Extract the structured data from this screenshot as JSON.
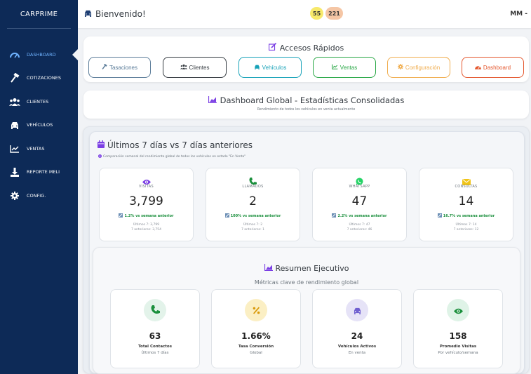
{
  "sidebar": {
    "brand": "CARPRIME",
    "items": [
      {
        "label": "DASHBOARD",
        "icon": "dashboard-icon",
        "active": true
      },
      {
        "label": "COTIZACIONES",
        "icon": "hammer-icon"
      },
      {
        "label": "CLIENTES",
        "icon": "users-icon"
      },
      {
        "label": "VEHÍCULOS",
        "icon": "car-icon"
      },
      {
        "label": "VENTAS",
        "icon": "chart-line-icon"
      },
      {
        "label": "REPORTE MELI",
        "icon": "download-icon"
      },
      {
        "label": "CONFIG.",
        "icon": "gear-icon"
      }
    ]
  },
  "topbar": {
    "welcome": "Bienvenido!",
    "badge_yellow": "55",
    "badge_orange": "221",
    "user": "MM -"
  },
  "quick": {
    "title": "Accesos Rápidos",
    "buttons": [
      {
        "label": "Tasaciones",
        "color": "#5b7c99",
        "icon": "hammer-icon"
      },
      {
        "label": "Clientes",
        "color": "#343a40",
        "icon": "users-icon"
      },
      {
        "label": "Vehículos",
        "color": "#17a2b8",
        "icon": "car-icon"
      },
      {
        "label": "Ventas",
        "color": "#28a745",
        "icon": "chart-line-icon"
      },
      {
        "label": "Configuración",
        "color": "#f0ad4e",
        "icon": "gear-icon"
      },
      {
        "label": "Dashboard",
        "color": "#e4572e",
        "icon": "gauge-icon"
      }
    ]
  },
  "global": {
    "title": "Dashboard Global - Estadísticas Consolidadas",
    "subtitle": "Rendimiento de todos los vehículos en venta actualmente"
  },
  "week": {
    "title": "Últimos 7 días vs 7 días anteriores",
    "note": "Comparación semanal del rendimiento global de todos los vehículos en estado \"En Venta\"",
    "stats": [
      {
        "label": "VISITAS",
        "value": "3,799",
        "trend": "1.2% vs semana anterior",
        "last": "Últimos 7: 3,799",
        "prev": "7 anteriores: 3,754",
        "icon": "eye-icon",
        "color": "#7b3fe4"
      },
      {
        "label": "LLAMADOS",
        "value": "2",
        "trend": "100% vs semana anterior",
        "last": "Últimos 7: 2",
        "prev": "7 anteriores: 1",
        "icon": "phone-icon",
        "color": "#1a8f3c"
      },
      {
        "label": "WHATSAPP",
        "value": "47",
        "trend": "2.2% vs semana anterior",
        "last": "Últimos 7: 47",
        "prev": "7 anteriores: 46",
        "icon": "whatsapp-icon",
        "color": "#25d366"
      },
      {
        "label": "CONSULTAS",
        "value": "14",
        "trend": "16.7% vs semana anterior",
        "last": "Últimos 7: 14",
        "prev": "7 anteriores: 12",
        "icon": "envelope-icon",
        "color": "#f0c419"
      }
    ]
  },
  "resumen": {
    "title": "Resumen Ejecutivo",
    "subtitle": "Métricas clave de rendimiento global",
    "kpis": [
      {
        "value": "63",
        "label": "Total Contactos",
        "sub": "Últimos 7 días",
        "icon": "phone-icon",
        "bg": "#e3f3ea",
        "fg": "#1a8f3c"
      },
      {
        "value": "1.66%",
        "label": "Tasa Conversión",
        "sub": "Global",
        "icon": "percent-icon",
        "bg": "#fbefc4",
        "fg": "#d99a0b"
      },
      {
        "value": "24",
        "label": "Vehículos Activos",
        "sub": "En venta",
        "icon": "car-icon",
        "bg": "#e6e3f7",
        "fg": "#6f5fd0"
      },
      {
        "value": "158",
        "label": "Promedio Visitas",
        "sub": "Por vehículo/semana",
        "icon": "eye-icon",
        "bg": "#dff3e7",
        "fg": "#1a8f3c"
      }
    ]
  }
}
